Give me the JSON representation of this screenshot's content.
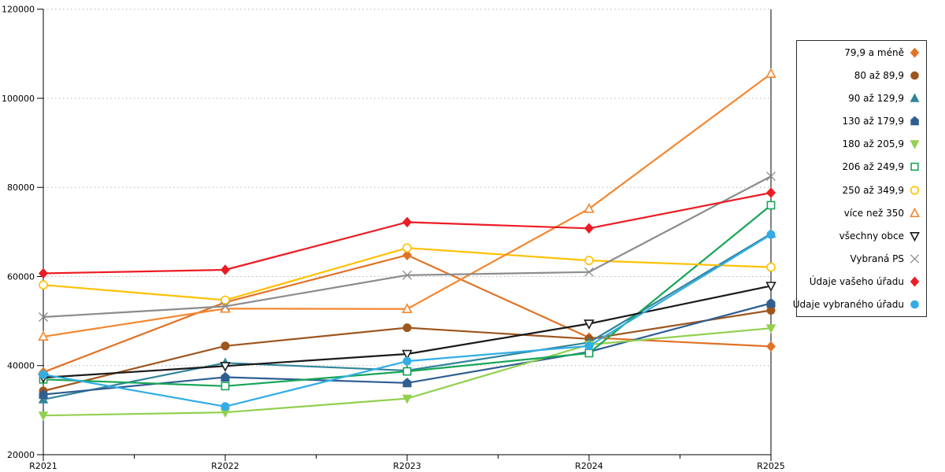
{
  "chart_data": {
    "type": "line",
    "title": "",
    "xlabel": "",
    "ylabel": "",
    "categories": [
      "R2021",
      "R2022",
      "R2023",
      "R2024",
      "R2025"
    ],
    "ylim": [
      20000,
      120000
    ],
    "ytick": 20000,
    "grid": "dotted-horizontal",
    "legend_position": "right",
    "axis_color": "#000000",
    "gridline_color": "#b3b3b3",
    "series": [
      {
        "name": "79,9 a méně",
        "color": "#e17226",
        "marker": "diamond",
        "fill": "filled",
        "values": [
          38500,
          54200,
          64800,
          46300,
          44300
        ]
      },
      {
        "name": "80 až 89,9",
        "color": "#9e561e",
        "marker": "circle",
        "fill": "filled",
        "values": [
          34300,
          44400,
          48500,
          46000,
          52400
        ]
      },
      {
        "name": "90 až 129,9",
        "color": "#31859b",
        "marker": "triangle-up",
        "fill": "filled",
        "values": [
          32400,
          40600,
          38900,
          45200,
          69600
        ]
      },
      {
        "name": "130 až 179,9",
        "color": "#2f5e91",
        "marker": "pentagon",
        "fill": "filled",
        "values": [
          33500,
          37400,
          36100,
          43100,
          54000
        ]
      },
      {
        "name": "180 až 205,9",
        "color": "#92d050",
        "marker": "triangle-down",
        "fill": "filled",
        "values": [
          28800,
          29500,
          32600,
          44700,
          48400
        ]
      },
      {
        "name": "206 až 249,9",
        "color": "#17a657",
        "marker": "square",
        "fill": "open",
        "values": [
          36900,
          35400,
          38700,
          42800,
          76000
        ]
      },
      {
        "name": "250 až 349,9",
        "color": "#ffc000",
        "marker": "circle",
        "fill": "open",
        "values": [
          58100,
          54700,
          66400,
          63600,
          62100
        ]
      },
      {
        "name": "více než 350",
        "color": "#f5862e",
        "marker": "triangle-up",
        "fill": "open",
        "values": [
          46500,
          52800,
          52700,
          75200,
          105500
        ]
      },
      {
        "name": "všechny obce",
        "color": "#1a1a1a",
        "marker": "triangle-down",
        "fill": "open",
        "values": [
          37300,
          39900,
          42600,
          49400,
          57900
        ]
      },
      {
        "name": "Vybraná PS",
        "color": "#8c8c8c",
        "marker": "x",
        "fill": "open",
        "values": [
          50900,
          53300,
          60300,
          61000,
          82500
        ]
      },
      {
        "name": "Údaje vašeho úřadu",
        "color": "#ec1c24",
        "marker": "diamond",
        "fill": "filled",
        "values": [
          60700,
          61500,
          72200,
          70800,
          78800
        ]
      },
      {
        "name": "Údaje vybraného úřadu",
        "color": "#33ade4",
        "marker": "circle",
        "fill": "filled",
        "values": [
          38000,
          30800,
          41000,
          44400,
          69400
        ]
      }
    ]
  }
}
